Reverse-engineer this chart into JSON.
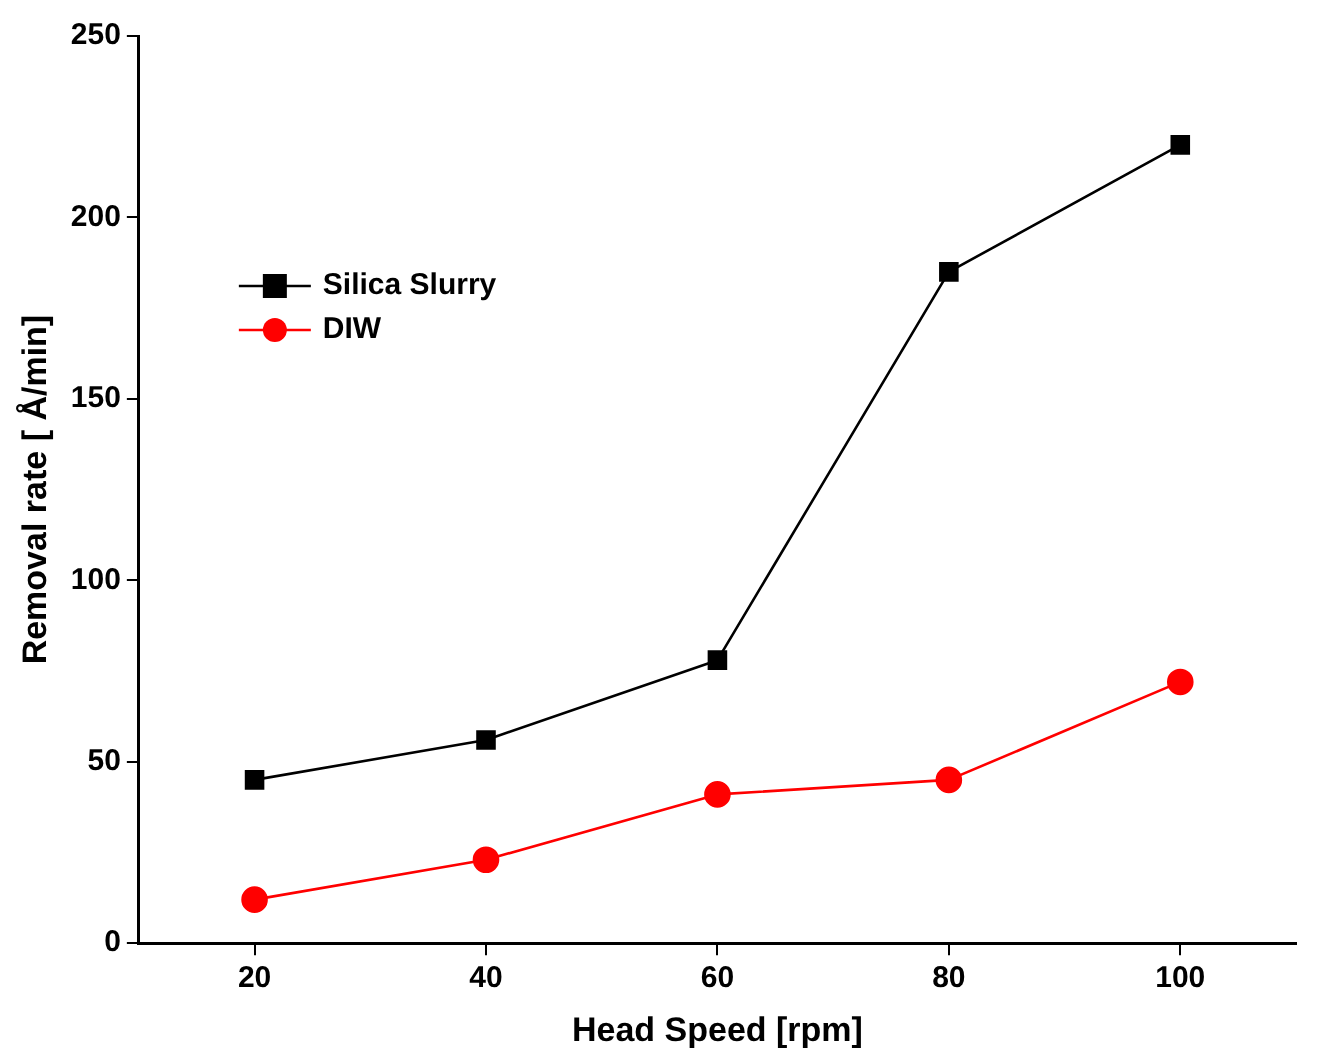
{
  "chart_data": {
    "type": "line",
    "xlabel": "Head Speed [rpm]",
    "ylabel": "Removal rate [ Å/min]",
    "x": [
      20,
      40,
      60,
      80,
      100
    ],
    "series": [
      {
        "name": "Silica Slurry",
        "color": "#000000",
        "marker": "square",
        "values": [
          45,
          56,
          78,
          185,
          220
        ]
      },
      {
        "name": "DIW",
        "color": "#ff0000",
        "marker": "circle",
        "values": [
          12,
          23,
          41,
          45,
          72
        ]
      }
    ],
    "xlim": [
      10,
      110
    ],
    "xticks": [
      20,
      40,
      60,
      80,
      100
    ],
    "ylim": [
      0,
      250
    ],
    "yticks": [
      0,
      50,
      100,
      150,
      200,
      250
    ],
    "grid": false,
    "legend": "top left",
    "line_style": "solid"
  }
}
